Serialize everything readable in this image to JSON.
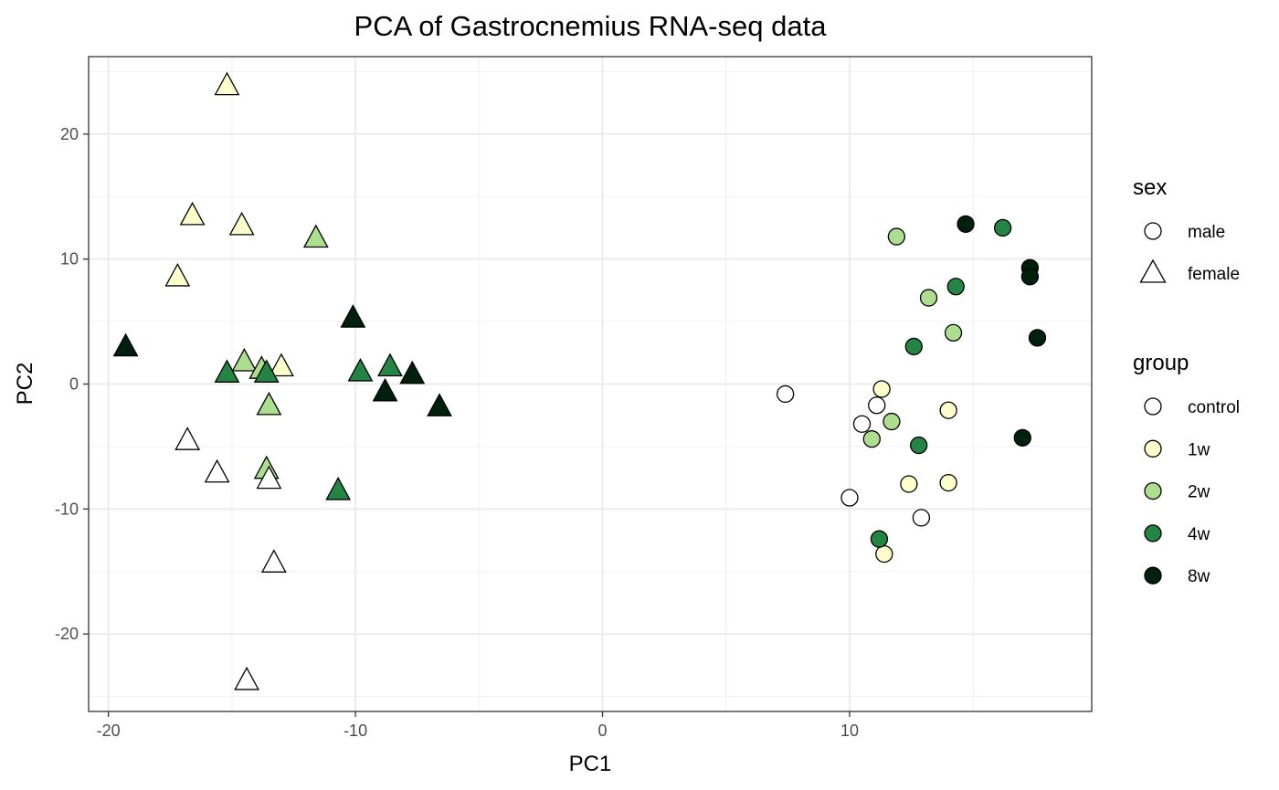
{
  "chart_data": {
    "type": "scatter",
    "title": "PCA of Gastrocnemius RNA-seq data",
    "xlabel": "PC1",
    "ylabel": "PC2",
    "xlim": [
      -20.8,
      19.8
    ],
    "ylim": [
      -26.2,
      26.2
    ],
    "x_ticks": [
      -20,
      -10,
      0,
      10
    ],
    "y_ticks": [
      -20,
      -10,
      0,
      10,
      20
    ],
    "x_tick_labels": [
      "-20",
      "-10",
      "0",
      "10"
    ],
    "y_tick_labels": [
      "-20",
      "-10",
      "0",
      "10",
      "20"
    ],
    "grid": true,
    "legend_position": "right",
    "legends": {
      "sex": {
        "title": "sex",
        "items": [
          {
            "label": "male",
            "shape": "circle"
          },
          {
            "label": "female",
            "shape": "triangle"
          }
        ]
      },
      "group": {
        "title": "group",
        "items": [
          {
            "label": "control",
            "color": "#ffffff"
          },
          {
            "label": "1w",
            "color": "#ffffcc"
          },
          {
            "label": "2w",
            "color": "#addd8e"
          },
          {
            "label": "4w",
            "color": "#238443"
          },
          {
            "label": "8w",
            "color": "#00200e"
          }
        ]
      }
    },
    "points": [
      {
        "x": -15.2,
        "y": 23.9,
        "sex": "female",
        "group": "1w"
      },
      {
        "x": -16.6,
        "y": 13.5,
        "sex": "female",
        "group": "1w"
      },
      {
        "x": -14.6,
        "y": 12.7,
        "sex": "female",
        "group": "1w"
      },
      {
        "x": -17.2,
        "y": 8.6,
        "sex": "female",
        "group": "1w"
      },
      {
        "x": -13.0,
        "y": 1.4,
        "sex": "female",
        "group": "1w"
      },
      {
        "x": -11.6,
        "y": 11.7,
        "sex": "female",
        "group": "2w"
      },
      {
        "x": -14.5,
        "y": 1.8,
        "sex": "female",
        "group": "2w"
      },
      {
        "x": -13.8,
        "y": 1.2,
        "sex": "female",
        "group": "2w"
      },
      {
        "x": -13.5,
        "y": -1.7,
        "sex": "female",
        "group": "2w"
      },
      {
        "x": -13.6,
        "y": -6.8,
        "sex": "female",
        "group": "2w"
      },
      {
        "x": -15.2,
        "y": 0.9,
        "sex": "female",
        "group": "4w"
      },
      {
        "x": -13.6,
        "y": 0.9,
        "sex": "female",
        "group": "4w"
      },
      {
        "x": -9.8,
        "y": 1.0,
        "sex": "female",
        "group": "4w"
      },
      {
        "x": -8.6,
        "y": 1.4,
        "sex": "female",
        "group": "4w"
      },
      {
        "x": -10.7,
        "y": -8.5,
        "sex": "female",
        "group": "4w"
      },
      {
        "x": -19.3,
        "y": 3.0,
        "sex": "female",
        "group": "8w"
      },
      {
        "x": -10.1,
        "y": 5.3,
        "sex": "female",
        "group": "8w"
      },
      {
        "x": -7.7,
        "y": 0.8,
        "sex": "female",
        "group": "8w"
      },
      {
        "x": -8.8,
        "y": -0.6,
        "sex": "female",
        "group": "8w"
      },
      {
        "x": -6.6,
        "y": -1.8,
        "sex": "female",
        "group": "8w"
      },
      {
        "x": -16.8,
        "y": -4.5,
        "sex": "female",
        "group": "control"
      },
      {
        "x": -15.6,
        "y": -7.1,
        "sex": "female",
        "group": "control"
      },
      {
        "x": -13.5,
        "y": -7.6,
        "sex": "female",
        "group": "control"
      },
      {
        "x": -13.3,
        "y": -14.3,
        "sex": "female",
        "group": "control"
      },
      {
        "x": -14.4,
        "y": -23.7,
        "sex": "female",
        "group": "control"
      },
      {
        "x": 7.4,
        "y": -0.8,
        "sex": "male",
        "group": "control"
      },
      {
        "x": 11.1,
        "y": -1.7,
        "sex": "male",
        "group": "control"
      },
      {
        "x": 10.5,
        "y": -3.2,
        "sex": "male",
        "group": "control"
      },
      {
        "x": 10.0,
        "y": -9.1,
        "sex": "male",
        "group": "control"
      },
      {
        "x": 12.9,
        "y": -10.7,
        "sex": "male",
        "group": "control"
      },
      {
        "x": 11.3,
        "y": -0.4,
        "sex": "male",
        "group": "1w"
      },
      {
        "x": 14.0,
        "y": -2.1,
        "sex": "male",
        "group": "1w"
      },
      {
        "x": 12.4,
        "y": -8.0,
        "sex": "male",
        "group": "1w"
      },
      {
        "x": 14.0,
        "y": -7.9,
        "sex": "male",
        "group": "1w"
      },
      {
        "x": 11.4,
        "y": -13.6,
        "sex": "male",
        "group": "1w"
      },
      {
        "x": 11.9,
        "y": 11.8,
        "sex": "male",
        "group": "2w"
      },
      {
        "x": 13.2,
        "y": 6.9,
        "sex": "male",
        "group": "2w"
      },
      {
        "x": 14.2,
        "y": 4.1,
        "sex": "male",
        "group": "2w"
      },
      {
        "x": 11.7,
        "y": -3.0,
        "sex": "male",
        "group": "2w"
      },
      {
        "x": 10.9,
        "y": -4.4,
        "sex": "male",
        "group": "2w"
      },
      {
        "x": 16.2,
        "y": 12.5,
        "sex": "male",
        "group": "4w"
      },
      {
        "x": 14.3,
        "y": 7.8,
        "sex": "male",
        "group": "4w"
      },
      {
        "x": 12.6,
        "y": 3.0,
        "sex": "male",
        "group": "4w"
      },
      {
        "x": 12.8,
        "y": -4.9,
        "sex": "male",
        "group": "4w"
      },
      {
        "x": 11.2,
        "y": -12.4,
        "sex": "male",
        "group": "4w"
      },
      {
        "x": 14.7,
        "y": 12.8,
        "sex": "male",
        "group": "8w"
      },
      {
        "x": 17.3,
        "y": 9.3,
        "sex": "male",
        "group": "8w"
      },
      {
        "x": 17.3,
        "y": 8.6,
        "sex": "male",
        "group": "8w"
      },
      {
        "x": 17.6,
        "y": 3.7,
        "sex": "male",
        "group": "8w"
      },
      {
        "x": 17.0,
        "y": -4.3,
        "sex": "male",
        "group": "8w"
      }
    ]
  }
}
